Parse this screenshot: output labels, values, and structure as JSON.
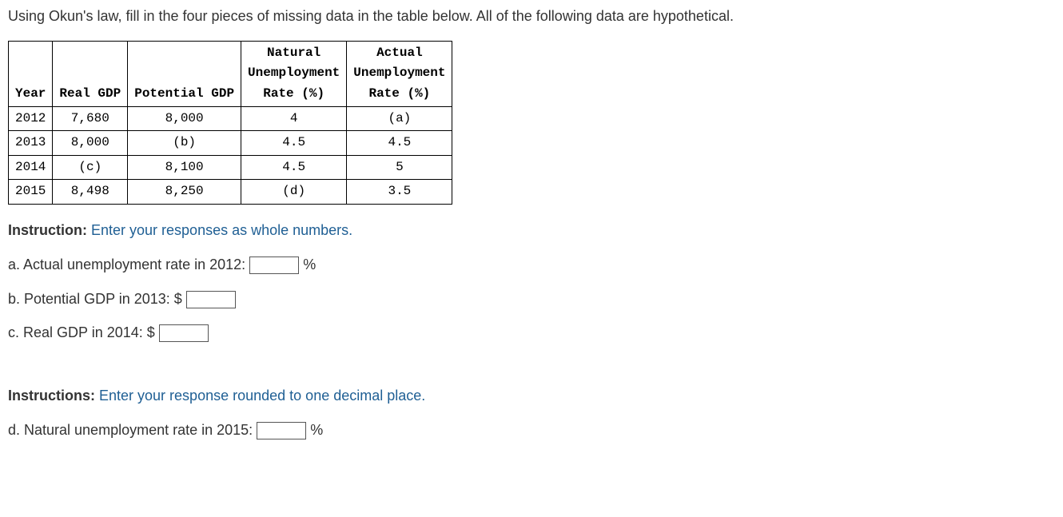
{
  "prompt": "Using Okun's law, fill in the four pieces of missing data in the table below. All of the following data are hypothetical.",
  "table": {
    "columns": [
      "Year",
      "Real GDP",
      "Potential GDP",
      "Natural\nUnemployment\nRate (%)",
      "Actual\nUnemployment\nRate (%)"
    ],
    "rows": [
      [
        "2012",
        "7,680",
        "8,000",
        "4",
        "(a)"
      ],
      [
        "2013",
        "8,000",
        "(b)",
        "4.5",
        "4.5"
      ],
      [
        "2014",
        "(c)",
        "8,100",
        "4.5",
        "5"
      ],
      [
        "2015",
        "8,498",
        "8,250",
        "(d)",
        "3.5"
      ]
    ],
    "col_widths_ch": [
      12,
      12,
      14,
      14,
      14
    ],
    "border_color": "#000000",
    "font_family": "Courier New"
  },
  "instruction1": {
    "label": "Instruction:",
    "text": " Enter your responses as whole numbers."
  },
  "qa": {
    "a": {
      "text": "a. Actual unemployment rate in 2012: ",
      "suffix": " %"
    },
    "b": {
      "text": "b. Potential GDP in 2013: $ "
    },
    "c": {
      "text": "c. Real GDP in 2014: $ "
    }
  },
  "instruction2": {
    "label": "Instructions:",
    "text": " Enter your response rounded to one decimal place."
  },
  "qd": {
    "text": "d. Natural unemployment rate in 2015: ",
    "suffix": " %"
  }
}
